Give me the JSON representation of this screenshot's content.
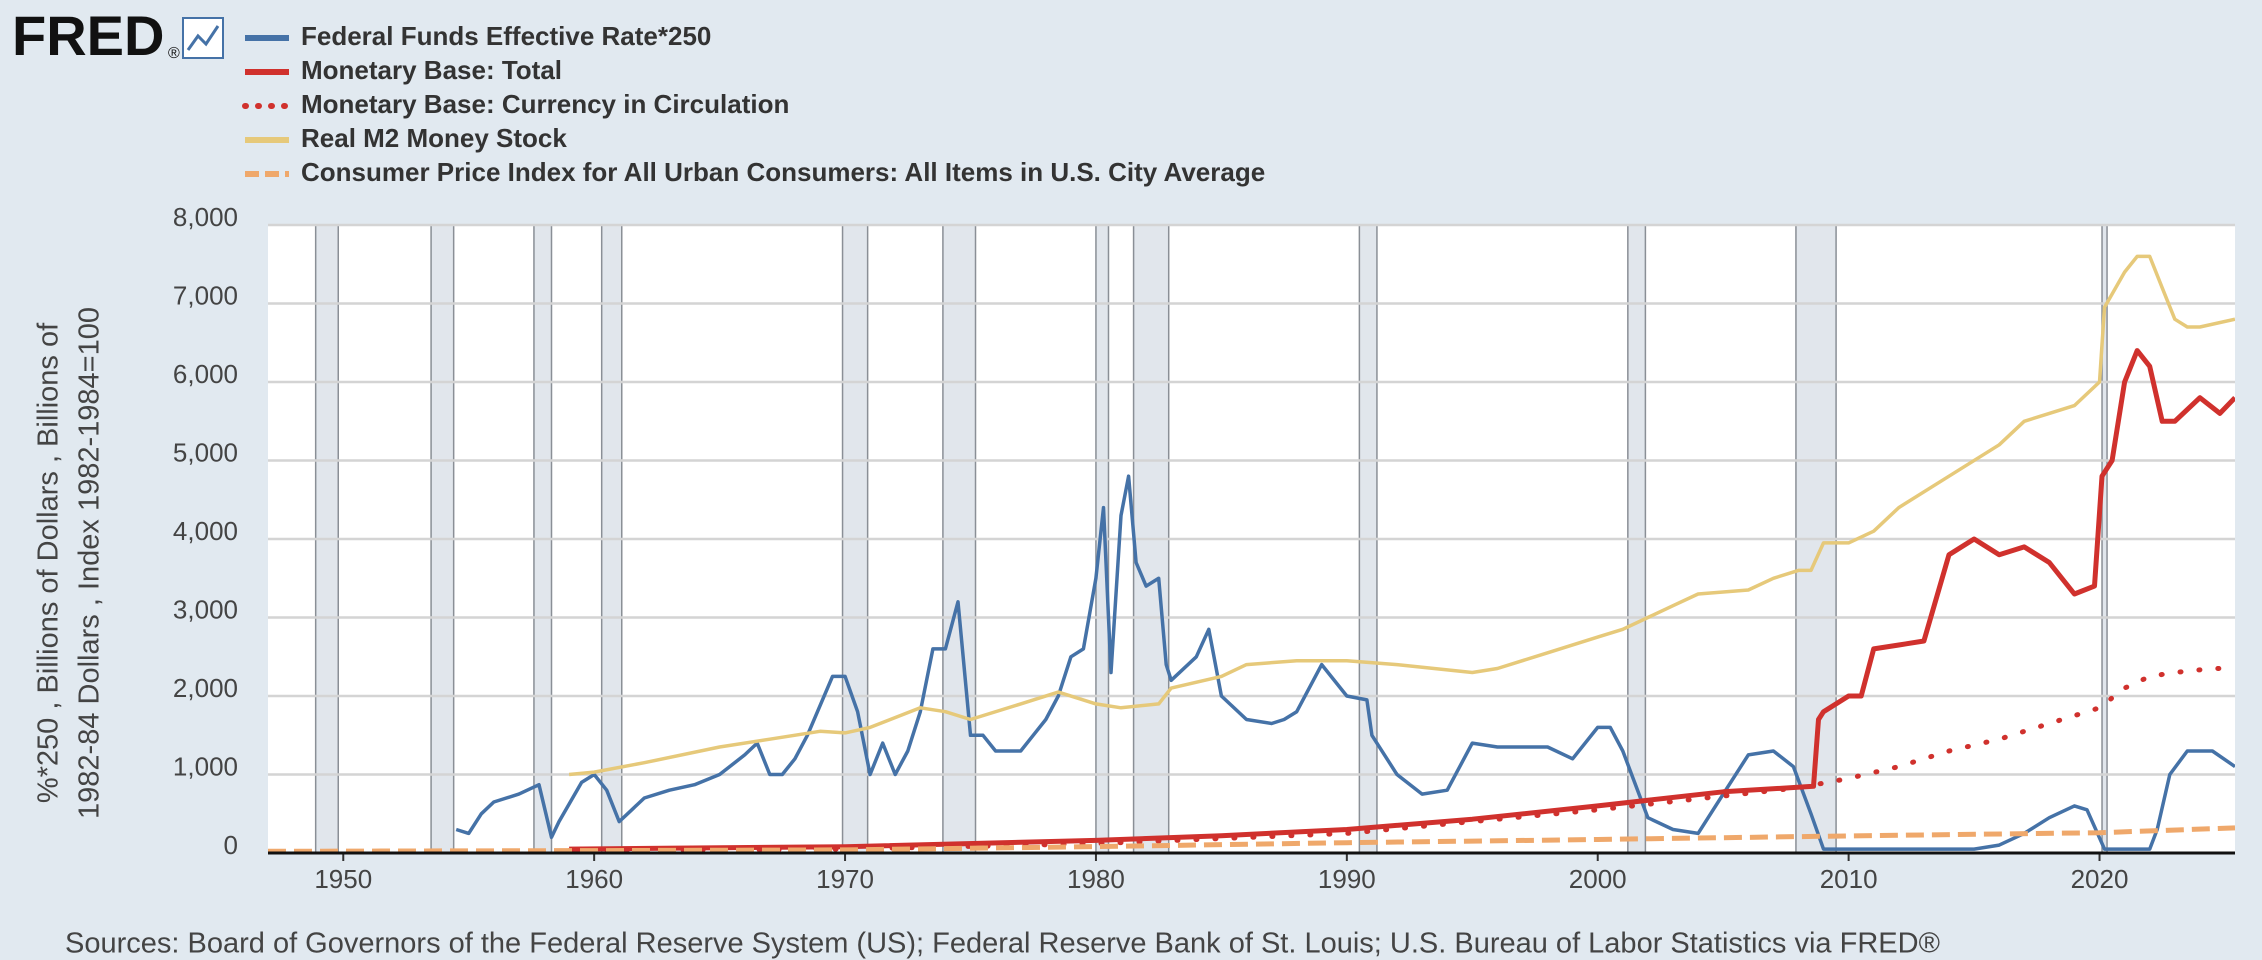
{
  "chart_data": {
    "type": "line",
    "logo": "FRED",
    "logo_mark": "®",
    "y_label_lines": [
      "%*250 , Billions of Dollars , Billions of",
      "1982-84 Dollars , Index 1982-1984=100"
    ],
    "source": "Sources: Board of Governors of the Federal Reserve System (US); Federal Reserve Bank of St. Louis; U.S. Bureau of Labor Statistics via FRED®",
    "xlim": [
      1947,
      2025.4
    ],
    "xticks": [
      1950,
      1960,
      1970,
      1980,
      1990,
      2000,
      2010,
      2020
    ],
    "ylim": [
      0,
      8000
    ],
    "yticks": [
      0,
      {
        "value": 1000,
        "label": "1,000"
      },
      {
        "value": 2000,
        "label": "2,000"
      },
      {
        "value": 3000,
        "label": "3,000"
      },
      {
        "value": 4000,
        "label": "4,000"
      },
      {
        "value": 5000,
        "label": "5,000"
      },
      {
        "value": 6000,
        "label": "6,000"
      },
      {
        "value": 7000,
        "label": "7,000"
      },
      {
        "value": 8000,
        "label": "8,000"
      }
    ],
    "grid": true,
    "recessions": [
      [
        1948.9,
        1949.8
      ],
      [
        1953.5,
        1954.4
      ],
      [
        1957.6,
        1958.3
      ],
      [
        1960.3,
        1961.1
      ],
      [
        1969.9,
        1970.9
      ],
      [
        1973.9,
        1975.2
      ],
      [
        1980.0,
        1980.5
      ],
      [
        1981.5,
        1982.9
      ],
      [
        1990.5,
        1991.2
      ],
      [
        2001.2,
        2001.9
      ],
      [
        2007.9,
        2009.5
      ],
      [
        2020.1,
        2020.3
      ]
    ],
    "series": [
      {
        "name": "Federal Funds Effective Rate*250",
        "color": "#4572a7",
        "style": "solid",
        "x": [
          1954.5,
          1955,
          1955.5,
          1956,
          1957,
          1957.8,
          1958.3,
          1958.6,
          1959.5,
          1960,
          1960.5,
          1961,
          1961.5,
          1962,
          1963,
          1964,
          1965,
          1966,
          1966.5,
          1967,
          1967.5,
          1968,
          1968.5,
          1969.5,
          1970,
          1970.5,
          1971,
          1971.5,
          1972,
          1972.5,
          1973,
          1973.5,
          1974,
          1974.5,
          1975,
          1975.5,
          1976,
          1977,
          1977.5,
          1978,
          1978.5,
          1979,
          1979.5,
          1980,
          1980.3,
          1980.6,
          1981,
          1981.3,
          1981.6,
          1982,
          1982.5,
          1982.8,
          1983,
          1984,
          1984.5,
          1985,
          1986,
          1987,
          1987.5,
          1988,
          1989,
          1990,
          1990.8,
          1991,
          1992,
          1993,
          1994,
          1995,
          1996,
          1997,
          1998,
          1999,
          2000,
          2000.5,
          2001,
          2002,
          2003,
          2004,
          2005,
          2006,
          2007,
          2007.8,
          2008.5,
          2009,
          2015,
          2016,
          2017,
          2018,
          2019,
          2019.5,
          2020.2,
          2022,
          2022.3,
          2022.8,
          2023.5,
          2024.5,
          2025.4
        ],
        "values": [
          300,
          250,
          500,
          650,
          750,
          870,
          200,
          400,
          900,
          1000,
          800,
          400,
          550,
          700,
          800,
          870,
          1000,
          1250,
          1400,
          1000,
          1000,
          1200,
          1500,
          2250,
          2250,
          1800,
          1000,
          1400,
          1000,
          1300,
          1800,
          2600,
          2600,
          3200,
          1500,
          1500,
          1300,
          1300,
          1500,
          1700,
          2000,
          2500,
          2600,
          3500,
          4400,
          2300,
          4300,
          4800,
          3700,
          3400,
          3500,
          2400,
          2200,
          2500,
          2850,
          2000,
          1700,
          1650,
          1700,
          1800,
          2400,
          2000,
          1950,
          1500,
          1000,
          750,
          800,
          1400,
          1350,
          1350,
          1350,
          1200,
          1600,
          1600,
          1300,
          450,
          300,
          250,
          750,
          1250,
          1300,
          1100,
          500,
          50,
          50,
          100,
          250,
          450,
          600,
          550,
          50,
          50,
          300,
          1000,
          1300,
          1300,
          1100
        ]
      },
      {
        "name": "Monetary Base: Total",
        "color": "#d0312d",
        "style": "solid",
        "x": [
          1959,
          1970,
          1980,
          1985,
          1990,
          1995,
          2000,
          2005,
          2008.6,
          2008.8,
          2009,
          2010,
          2010.5,
          2011,
          2012,
          2013,
          2014,
          2015,
          2016,
          2017,
          2018,
          2019,
          2019.8,
          2020.1,
          2020.5,
          2021,
          2021.5,
          2022,
          2022.5,
          2023,
          2024,
          2024.8,
          2025.4
        ],
        "values": [
          50,
          80,
          160,
          220,
          300,
          430,
          600,
          780,
          850,
          1700,
          1800,
          2000,
          2000,
          2600,
          2650,
          2700,
          3800,
          4000,
          3800,
          3900,
          3700,
          3300,
          3400,
          4800,
          5000,
          6000,
          6400,
          6200,
          5500,
          5500,
          5800,
          5600,
          5800
        ]
      },
      {
        "name": "Monetary Base: Currency in Circulation",
        "color": "#d0312d",
        "style": "dotted",
        "x": [
          1959,
          1970,
          1980,
          1990,
          2000,
          2008,
          2010,
          2012,
          2014,
          2016,
          2018,
          2020,
          2021,
          2022,
          2023,
          2024.5,
          2025.4
        ],
        "values": [
          30,
          50,
          120,
          250,
          550,
          830,
          950,
          1100,
          1300,
          1450,
          1650,
          1850,
          2100,
          2250,
          2300,
          2350,
          2350
        ]
      },
      {
        "name": "Real M2 Money Stock",
        "color": "#e6c97a",
        "style": "solid",
        "x": [
          1959,
          1960,
          1962,
          1965,
          1967,
          1969,
          1970,
          1971,
          1973,
          1974,
          1975,
          1977,
          1978.5,
          1980,
          1981,
          1982.5,
          1983,
          1985,
          1986,
          1988,
          1989.5,
          1990,
          1992,
          1995,
          1996,
          1998,
          2000,
          2001,
          2002,
          2003,
          2004,
          2006,
          2007,
          2008,
          2008.5,
          2009,
          2010,
          2011,
          2012,
          2014,
          2016,
          2017,
          2018,
          2019,
          2020,
          2020.2,
          2021,
          2021.5,
          2022,
          2022.5,
          2023,
          2023.5,
          2024,
          2025.4
        ],
        "values": [
          1000,
          1030,
          1150,
          1350,
          1450,
          1550,
          1530,
          1600,
          1850,
          1800,
          1700,
          1900,
          2050,
          1900,
          1850,
          1900,
          2100,
          2250,
          2400,
          2450,
          2450,
          2450,
          2400,
          2300,
          2350,
          2550,
          2750,
          2850,
          3000,
          3150,
          3300,
          3350,
          3500,
          3600,
          3600,
          3950,
          3950,
          4100,
          4400,
          4800,
          5200,
          5500,
          5600,
          5700,
          6000,
          6950,
          7400,
          7600,
          7600,
          7200,
          6800,
          6700,
          6700,
          6800
        ]
      },
      {
        "name": "Consumer Price Index for All Urban Consumers: All Items in U.S. City Average",
        "color": "#efa86b",
        "style": "dashed",
        "x": [
          1947,
          1960,
          1970,
          1980,
          1990,
          2000,
          2010,
          2020,
          2025.4
        ],
        "values": [
          22,
          30,
          39,
          82,
          131,
          172,
          218,
          259,
          320
        ]
      }
    ]
  }
}
